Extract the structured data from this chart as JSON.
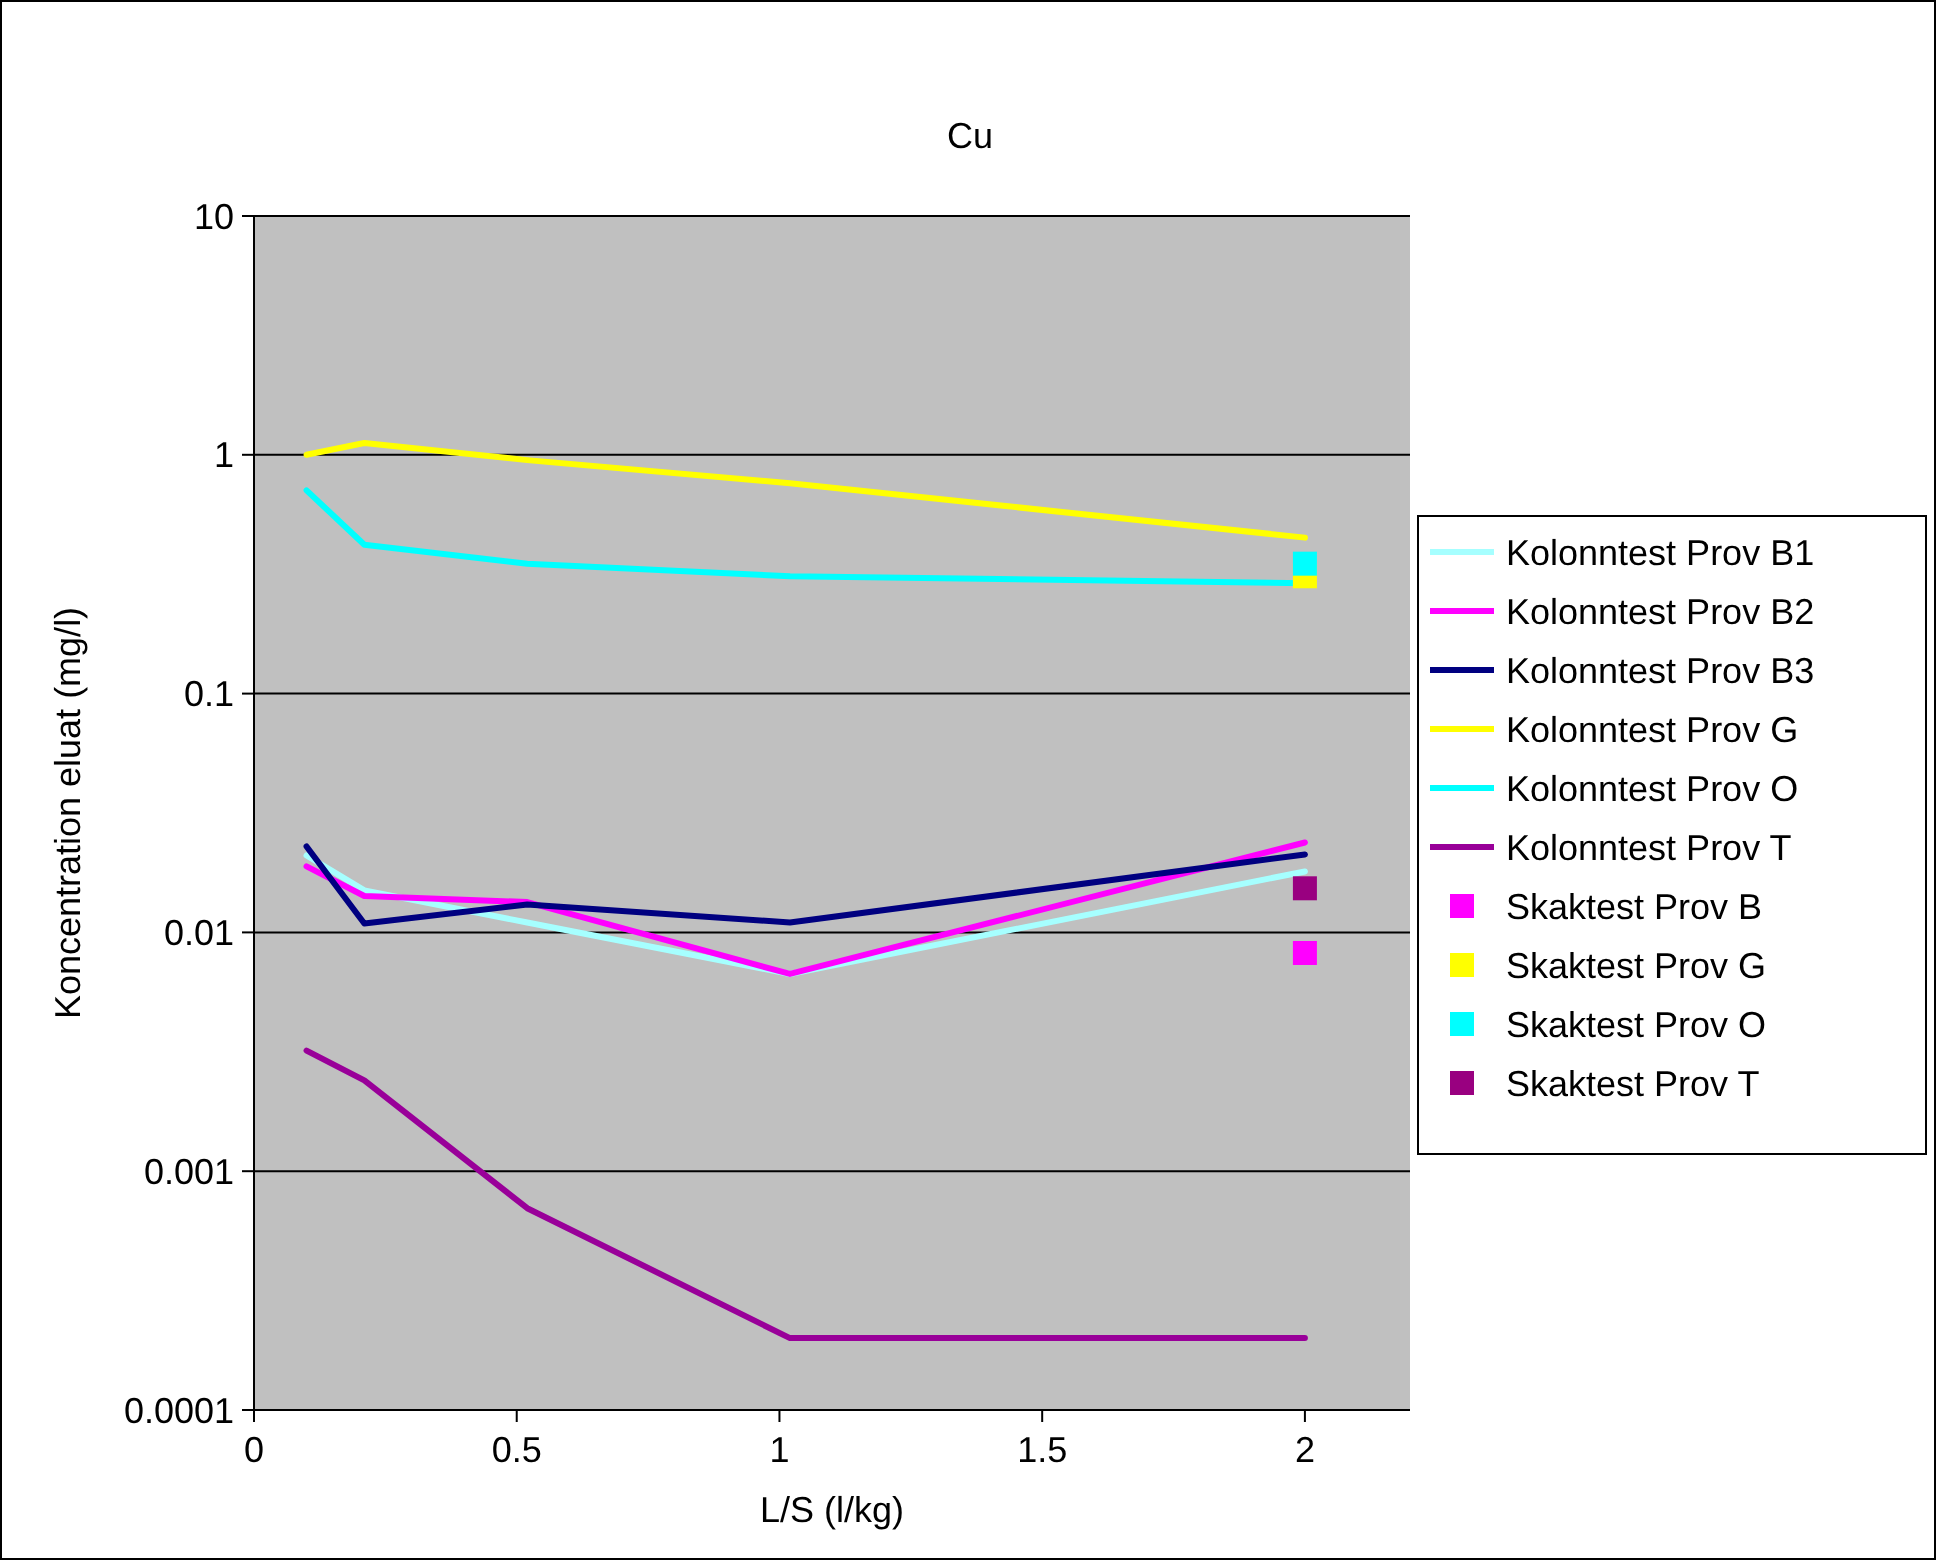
{
  "chart_data": {
    "type": "line",
    "title": "Cu",
    "xlabel": "L/S (l/kg)",
    "ylabel": "Koncentration eluat (mg/l)",
    "log": "y",
    "xlim": [
      0,
      2.2
    ],
    "xticks": [
      0,
      0.5,
      1,
      1.5,
      2
    ],
    "ylim": [
      0.0001,
      10
    ],
    "yticks": [
      0.0001,
      0.001,
      0.01,
      0.1,
      1,
      10
    ],
    "grid": "y",
    "legend": "right",
    "series": [
      {
        "name": "Kolonntest Prov B1",
        "color": "#a6ffff",
        "x": [
          0.1,
          0.21,
          0.52,
          1.02,
          2
        ],
        "values": [
          0.021,
          0.015,
          0.011,
          0.0067,
          0.018
        ]
      },
      {
        "name": "Kolonntest Prov B2",
        "color": "#ff00ff",
        "x": [
          0.1,
          0.21,
          0.52,
          1.02,
          2
        ],
        "values": [
          0.0189,
          0.0142,
          0.0134,
          0.0067,
          0.0238
        ]
      },
      {
        "name": "Kolonntest Prov B3",
        "color": "#000080",
        "x": [
          0.1,
          0.21,
          0.52,
          1.02,
          2
        ],
        "values": [
          0.0229,
          0.0109,
          0.0131,
          0.011,
          0.0212
        ]
      },
      {
        "name": "Kolonntest Prov G",
        "color": "#ffff00",
        "x": [
          0.1,
          0.21,
          0.52,
          1.02,
          2
        ],
        "values": [
          1,
          1.12,
          0.95,
          0.76,
          0.45
        ]
      },
      {
        "name": "Kolonntest Prov O",
        "color": "#00ffff",
        "x": [
          0.1,
          0.21,
          0.52,
          1.02,
          2
        ],
        "values": [
          0.71,
          0.42,
          0.35,
          0.31,
          0.29
        ]
      },
      {
        "name": "Kolonntest Prov T",
        "color": "#990099",
        "x": [
          0.1,
          0.21,
          0.52,
          1.02,
          2
        ],
        "values": [
          0.0032,
          0.0024,
          0.0007,
          0.0002,
          0.0002
        ]
      },
      {
        "name": "Skaktest Prov B",
        "type": "scatter",
        "marker": "square",
        "color": "#ff00ff",
        "x": [
          2
        ],
        "values": [
          0.0082
        ]
      },
      {
        "name": "Skaktest Prov G",
        "type": "scatter",
        "marker": "square",
        "color": "#ffff00",
        "x": [
          2
        ],
        "values": [
          0.31
        ]
      },
      {
        "name": "Skaktest Prov O",
        "type": "scatter",
        "marker": "square",
        "color": "#00ffff",
        "x": [
          2
        ],
        "values": [
          0.35
        ]
      },
      {
        "name": "Skaktest Prov T",
        "type": "scatter",
        "marker": "square",
        "color": "#990080",
        "x": [
          2
        ],
        "values": [
          0.0153
        ]
      }
    ]
  }
}
